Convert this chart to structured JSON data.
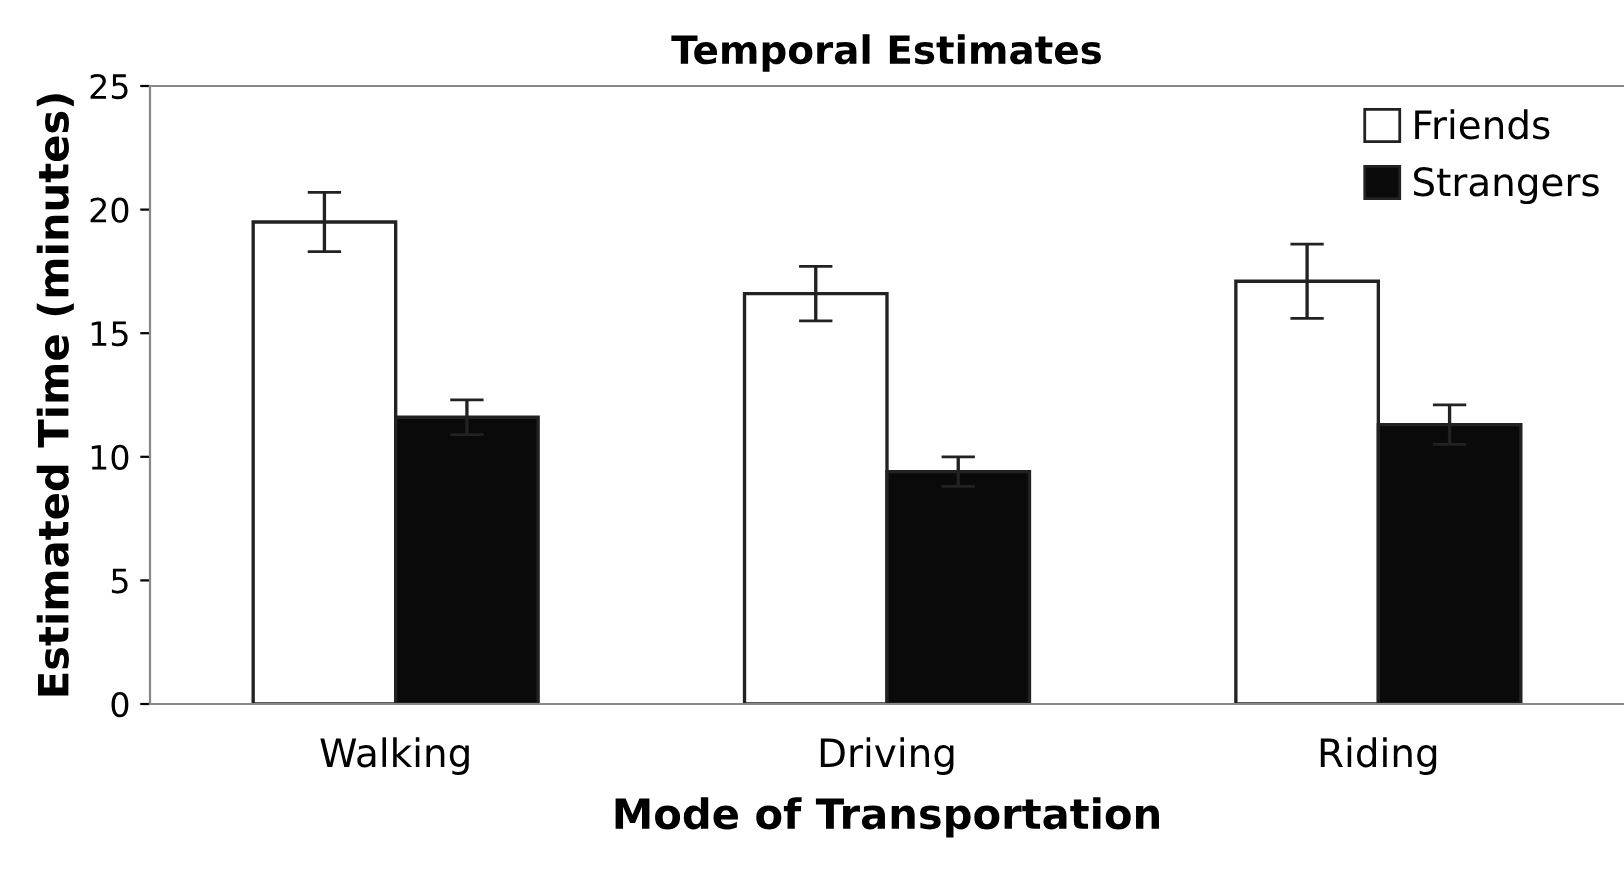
{
  "chart_data": {
    "type": "bar",
    "title": "Temporal Estimates",
    "xlabel": "Mode of Transportation",
    "ylabel": "Estimated Time (minutes)",
    "categories": [
      "Walking",
      "Driving",
      "Riding"
    ],
    "series": [
      {
        "name": "Friends",
        "color": "#ffffff",
        "values": [
          19.5,
          16.6,
          17.1
        ],
        "errors": [
          1.2,
          1.1,
          1.5
        ]
      },
      {
        "name": "Strangers",
        "color": "#0a0a0a",
        "values": [
          11.6,
          9.4,
          11.3
        ],
        "errors": [
          0.7,
          0.6,
          0.8
        ]
      }
    ],
    "ylim": [
      0,
      25
    ],
    "yticks": [
      0,
      5,
      10,
      15,
      20,
      25
    ],
    "grid": false,
    "legend": "top right"
  }
}
